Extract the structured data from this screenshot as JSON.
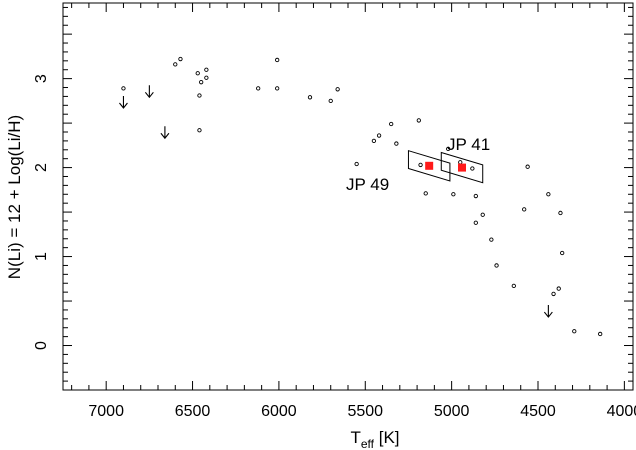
{
  "chart_data": {
    "type": "scatter",
    "xlabel_main": "T",
    "xlabel_sub": "eff",
    "xlabel_unit": " [K]",
    "ylabel": "N(Li) = 12 + Log(Li/H)",
    "xlim": [
      7250,
      3950
    ],
    "ylim": [
      -0.5,
      3.85
    ],
    "x_inverted": true,
    "grid": false,
    "x_ticks": [
      7000,
      6500,
      6000,
      5500,
      5000,
      4500,
      4000
    ],
    "y_ticks": [
      0,
      1,
      2,
      3
    ],
    "series": [
      {
        "marker": "open-circle",
        "points": [
          [
            6900,
            2.89
          ],
          [
            6600,
            3.16
          ],
          [
            6570,
            3.22
          ],
          [
            6470,
            3.06
          ],
          [
            6450,
            2.96
          ],
          [
            6420,
            3.1
          ],
          [
            6420,
            3.01
          ],
          [
            6460,
            2.81
          ],
          [
            6460,
            2.42
          ],
          [
            6120,
            2.89
          ],
          [
            6010,
            3.21
          ],
          [
            6010,
            2.89
          ],
          [
            5820,
            2.79
          ],
          [
            5700,
            2.75
          ],
          [
            5660,
            2.88
          ],
          [
            5550,
            2.04
          ],
          [
            5450,
            2.3
          ],
          [
            5420,
            2.36
          ],
          [
            5350,
            2.49
          ],
          [
            5320,
            2.27
          ],
          [
            5190,
            2.53
          ],
          [
            5180,
            2.03
          ],
          [
            5150,
            1.71
          ],
          [
            5020,
            2.21
          ],
          [
            4990,
            1.7
          ],
          [
            4950,
            2.06
          ],
          [
            4880,
            1.99
          ],
          [
            4860,
            1.68
          ],
          [
            4860,
            1.38
          ],
          [
            4820,
            1.47
          ],
          [
            4770,
            1.19
          ],
          [
            4740,
            0.9
          ],
          [
            4640,
            0.67
          ],
          [
            4580,
            1.53
          ],
          [
            4560,
            2.01
          ],
          [
            4440,
            1.7
          ],
          [
            4410,
            0.58
          ],
          [
            4380,
            0.64
          ],
          [
            4370,
            1.49
          ],
          [
            4360,
            1.04
          ],
          [
            4290,
            0.16
          ],
          [
            4140,
            0.13
          ]
        ]
      }
    ],
    "upper_limits": [
      {
        "x": 6900,
        "y": 2.67
      },
      {
        "x": 6750,
        "y": 2.79
      },
      {
        "x": 6660,
        "y": 2.33
      },
      {
        "x": 4440,
        "y": 0.32
      }
    ],
    "highlighted": [
      {
        "label": "JP 41",
        "x": 4940,
        "y": 2.0,
        "color": "#ff1a1a"
      },
      {
        "label": "JP 49",
        "x": 5130,
        "y": 2.02,
        "color": "#ff1a1a"
      }
    ]
  }
}
